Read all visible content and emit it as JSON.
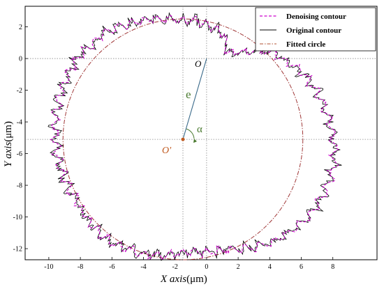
{
  "chart_data": {
    "type": "line",
    "title": "",
    "xlabel_italic": "X axis",
    "xlabel_unit": "(μm)",
    "ylabel_italic": "Y axis",
    "ylabel_unit": "(μm)",
    "xlim": [
      -11.5,
      10.8
    ],
    "ylim": [
      -12.7,
      3.3
    ],
    "x_ticks": [
      -10,
      -8,
      -6,
      -4,
      -2,
      0,
      2,
      4,
      6,
      8
    ],
    "y_ticks": [
      2,
      0,
      -2,
      -4,
      -6,
      -8,
      -10,
      -12
    ],
    "legend_position": "top-right",
    "series": [
      {
        "name": "Denoising contour",
        "color": "#cc00cc",
        "style": "dashed"
      },
      {
        "name": "Original contour",
        "color": "#000000",
        "style": "solid"
      },
      {
        "name": "Fitted circle",
        "color": "#b05030",
        "style": "dash-dot"
      }
    ],
    "fitted_circle": {
      "center": [
        -1.5,
        -5.1
      ],
      "radius": 7.6
    },
    "contour": {
      "center": [
        -1.35,
        -4.9
      ],
      "points_angle_deg_radius": [
        [
          0,
          9.4
        ],
        [
          15,
          8.9
        ],
        [
          30,
          8.4
        ],
        [
          45,
          7.5
        ],
        [
          55,
          6.5
        ],
        [
          63,
          5.9
        ],
        [
          70,
          6.9
        ],
        [
          82,
          7.3
        ],
        [
          95,
          7.4
        ],
        [
          110,
          7.8
        ],
        [
          130,
          8.3
        ],
        [
          150,
          8.4
        ],
        [
          170,
          8.3
        ],
        [
          190,
          8.2
        ],
        [
          210,
          8.0
        ],
        [
          230,
          8.2
        ],
        [
          250,
          7.9
        ],
        [
          270,
          7.3
        ],
        [
          290,
          7.6
        ],
        [
          310,
          8.7
        ],
        [
          330,
          9.4
        ],
        [
          345,
          9.6
        ]
      ]
    },
    "guides": {
      "h_lines_y": [
        0,
        -5.1
      ],
      "v_lines_x": [
        0,
        -1.5
      ]
    },
    "annotations": {
      "origin_label": "O",
      "center_label": "O'",
      "eccentricity_label": "e",
      "angle_label": "α",
      "origin_point": [
        0,
        0
      ],
      "center_point": [
        -1.5,
        -5.1
      ]
    }
  }
}
